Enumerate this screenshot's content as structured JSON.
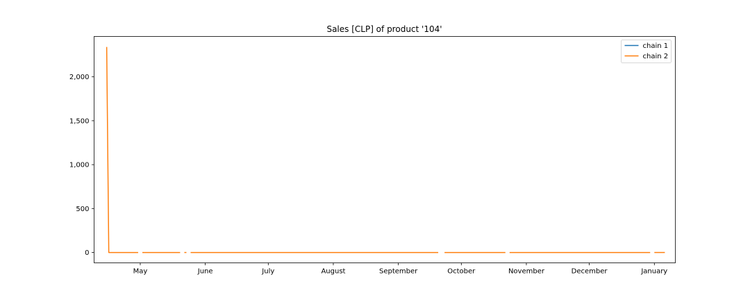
{
  "chart_data": {
    "type": "line",
    "title": "Sales [CLP] of product '104'",
    "xlabel": "",
    "ylabel": "",
    "x_tick_labels": [
      "May",
      "June",
      "July",
      "August",
      "September",
      "October",
      "November",
      "December",
      "January"
    ],
    "y_ticks": [
      0,
      500,
      1000,
      1500,
      2000
    ],
    "y_tick_labels": [
      "0",
      "500",
      "1,000",
      "1,500",
      "2,000"
    ],
    "ylim": [
      -118,
      2460
    ],
    "grid": false,
    "legend_position": "top-right",
    "series": [
      {
        "name": "chain 1",
        "color": "#1f77b4",
        "points": []
      },
      {
        "name": "chain 2",
        "color": "#ff7f0e",
        "segments": [
          [
            [
              "2023-04-15",
              2340
            ],
            [
              "2023-04-16",
              0
            ],
            [
              "2023-04-30",
              0
            ]
          ],
          [
            [
              "2023-05-02",
              0
            ],
            [
              "2023-05-20",
              0
            ]
          ],
          [
            [
              "2023-05-22",
              0
            ],
            [
              "2023-05-23",
              0
            ]
          ],
          [
            [
              "2023-05-25",
              0
            ],
            [
              "2023-09-20",
              0
            ]
          ],
          [
            [
              "2023-09-23",
              0
            ],
            [
              "2023-10-22",
              0
            ]
          ],
          [
            [
              "2023-10-24",
              0
            ],
            [
              "2023-12-30",
              0
            ]
          ],
          [
            [
              "2024-01-01",
              0
            ],
            [
              "2024-01-06",
              0
            ]
          ]
        ]
      }
    ]
  }
}
